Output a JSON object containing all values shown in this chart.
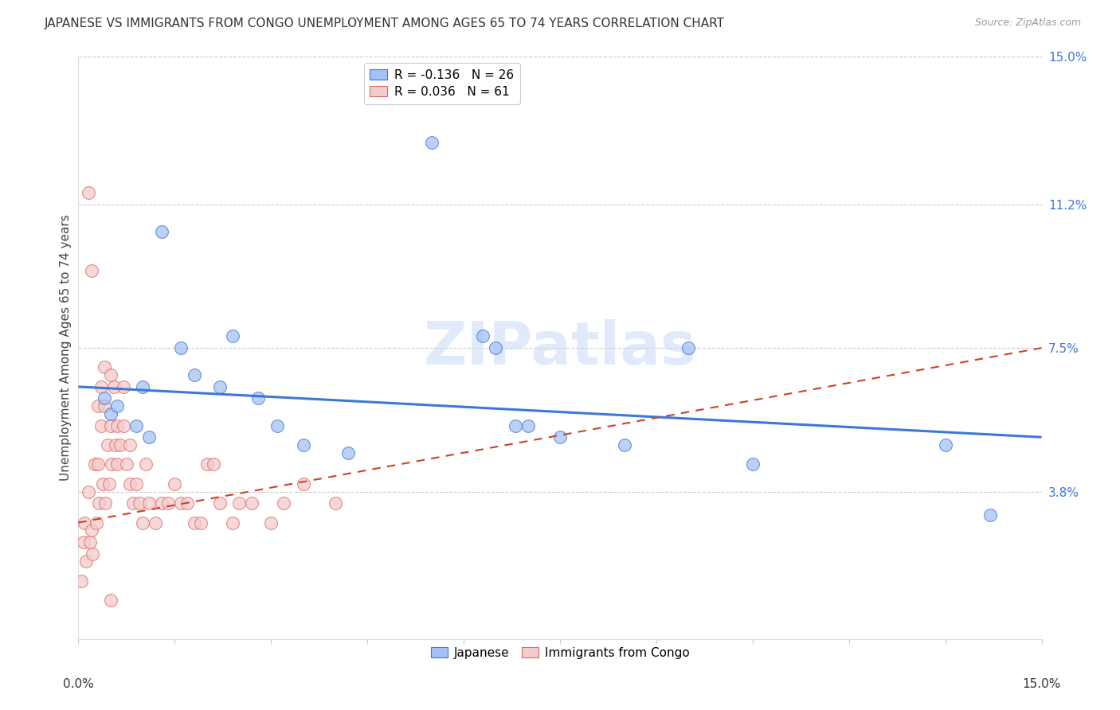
{
  "title": "JAPANESE VS IMMIGRANTS FROM CONGO UNEMPLOYMENT AMONG AGES 65 TO 74 YEARS CORRELATION CHART",
  "source": "Source: ZipAtlas.com",
  "ylabel": "Unemployment Among Ages 65 to 74 years",
  "ytick_values": [
    3.8,
    7.5,
    11.2,
    15.0
  ],
  "xmin": 0.0,
  "xmax": 15.0,
  "ymin": 0.0,
  "ymax": 15.0,
  "legend1_r": "-0.136",
  "legend1_n": "26",
  "legend2_r": "0.036",
  "legend2_n": "61",
  "legend1_label": "Japanese",
  "legend2_label": "Immigrants from Congo",
  "blue_fill": "#a4c2f4",
  "blue_edge": "#3c78d8",
  "pink_fill": "#f4cccc",
  "pink_edge": "#e06666",
  "blue_line": "#3c78d8",
  "pink_line": "#cc4125",
  "watermark_color": "#c9daf8",
  "japanese_x": [
    0.4,
    0.5,
    0.6,
    0.9,
    1.0,
    1.1,
    1.3,
    1.6,
    1.8,
    2.2,
    2.4,
    2.8,
    3.1,
    3.5,
    4.2,
    5.5,
    6.3,
    6.8,
    7.5,
    8.5,
    10.5,
    13.5,
    14.2,
    6.5,
    7.0,
    9.5
  ],
  "japanese_y": [
    6.2,
    5.8,
    6.0,
    5.5,
    6.5,
    5.2,
    10.5,
    7.5,
    6.8,
    6.5,
    7.8,
    6.2,
    5.5,
    5.0,
    4.8,
    12.8,
    7.8,
    5.5,
    5.2,
    5.0,
    4.5,
    5.0,
    3.2,
    7.5,
    5.5,
    7.5
  ],
  "congo_x": [
    0.05,
    0.08,
    0.1,
    0.12,
    0.15,
    0.18,
    0.2,
    0.22,
    0.25,
    0.28,
    0.3,
    0.3,
    0.32,
    0.35,
    0.35,
    0.38,
    0.4,
    0.4,
    0.42,
    0.45,
    0.48,
    0.5,
    0.5,
    0.52,
    0.55,
    0.58,
    0.6,
    0.6,
    0.65,
    0.7,
    0.7,
    0.75,
    0.8,
    0.8,
    0.85,
    0.9,
    0.95,
    1.0,
    1.05,
    1.1,
    1.2,
    1.3,
    1.4,
    1.5,
    1.6,
    1.7,
    1.8,
    1.9,
    2.0,
    2.1,
    2.2,
    2.4,
    2.5,
    2.7,
    3.0,
    3.2,
    3.5,
    4.0,
    0.15,
    0.2,
    0.5
  ],
  "congo_y": [
    1.5,
    2.5,
    3.0,
    2.0,
    3.8,
    2.5,
    2.8,
    2.2,
    4.5,
    3.0,
    6.0,
    4.5,
    3.5,
    5.5,
    6.5,
    4.0,
    6.0,
    7.0,
    3.5,
    5.0,
    4.0,
    6.8,
    5.5,
    4.5,
    6.5,
    5.0,
    5.5,
    4.5,
    5.0,
    6.5,
    5.5,
    4.5,
    5.0,
    4.0,
    3.5,
    4.0,
    3.5,
    3.0,
    4.5,
    3.5,
    3.0,
    3.5,
    3.5,
    4.0,
    3.5,
    3.5,
    3.0,
    3.0,
    4.5,
    4.5,
    3.5,
    3.0,
    3.5,
    3.5,
    3.0,
    3.5,
    4.0,
    3.5,
    11.5,
    9.5,
    1.0
  ]
}
